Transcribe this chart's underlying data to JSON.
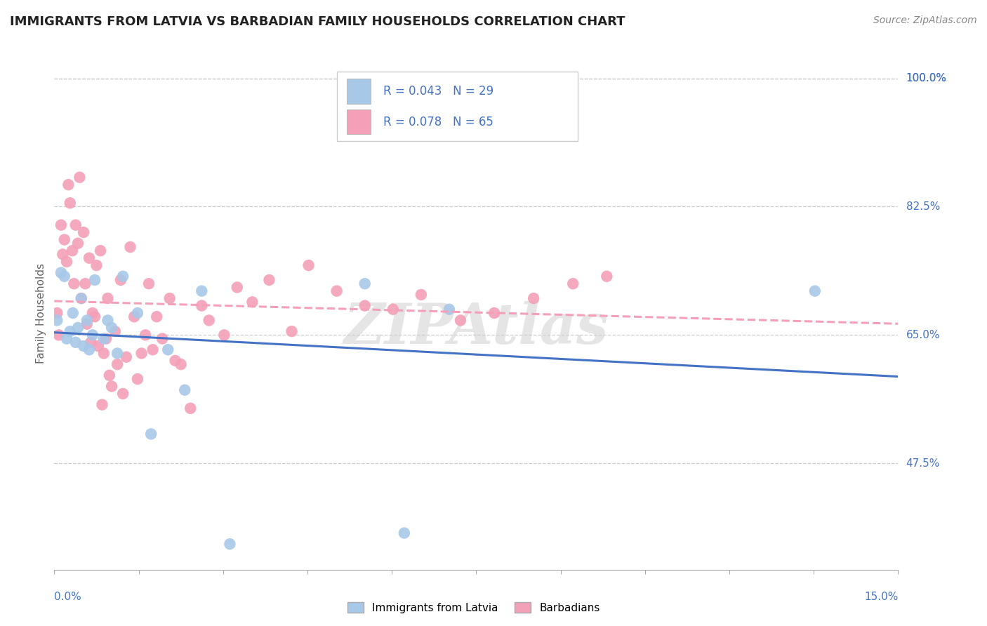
{
  "title": "IMMIGRANTS FROM LATVIA VS BARBADIAN FAMILY HOUSEHOLDS CORRELATION CHART",
  "source": "Source: ZipAtlas.com",
  "ylabel": "Family Households",
  "xmin": 0.0,
  "xmax": 15.0,
  "ymin": 33.0,
  "ymax": 103.0,
  "yticks": [
    47.5,
    65.0,
    82.5,
    100.0
  ],
  "ytick_labels": [
    "47.5%",
    "65.0%",
    "82.5%",
    "100.0%"
  ],
  "color_blue": "#A8C8E8",
  "color_pink": "#F4A0B8",
  "color_blue_text": "#4472C4",
  "trend_blue": "#4472C4",
  "trend_pink": "#F4A0B8",
  "latvia_x": [
    0.05,
    0.12,
    0.18,
    0.22,
    0.28,
    0.33,
    0.38,
    0.42,
    0.48,
    0.52,
    0.58,
    0.62,
    0.68,
    0.72,
    0.88,
    0.95,
    1.02,
    1.12,
    1.22,
    1.48,
    1.72,
    2.02,
    2.32,
    2.62,
    3.12,
    5.52,
    6.22,
    7.02,
    13.52
  ],
  "latvia_y": [
    67.0,
    73.5,
    73.0,
    64.5,
    65.5,
    68.0,
    64.0,
    66.0,
    70.0,
    63.5,
    67.0,
    63.0,
    65.0,
    72.5,
    64.5,
    67.0,
    66.0,
    62.5,
    73.0,
    68.0,
    51.5,
    63.0,
    57.5,
    71.0,
    36.5,
    72.0,
    38.0,
    68.5,
    71.0
  ],
  "barbadian_x": [
    0.05,
    0.08,
    0.12,
    0.15,
    0.18,
    0.22,
    0.25,
    0.28,
    0.32,
    0.35,
    0.38,
    0.42,
    0.45,
    0.48,
    0.52,
    0.55,
    0.58,
    0.62,
    0.65,
    0.68,
    0.72,
    0.75,
    0.78,
    0.82,
    0.85,
    0.88,
    0.92,
    0.95,
    0.98,
    1.02,
    1.08,
    1.12,
    1.18,
    1.22,
    1.28,
    1.35,
    1.42,
    1.48,
    1.55,
    1.62,
    1.68,
    1.75,
    1.82,
    1.92,
    2.05,
    2.15,
    2.25,
    2.42,
    2.62,
    2.75,
    3.02,
    3.25,
    3.52,
    3.82,
    4.22,
    4.52,
    5.02,
    5.52,
    6.02,
    6.52,
    7.22,
    7.82,
    8.52,
    9.22,
    9.82
  ],
  "barbadian_y": [
    68.0,
    65.0,
    80.0,
    76.0,
    78.0,
    75.0,
    85.5,
    83.0,
    76.5,
    72.0,
    80.0,
    77.5,
    86.5,
    70.0,
    79.0,
    72.0,
    66.5,
    75.5,
    64.0,
    68.0,
    67.5,
    74.5,
    63.5,
    76.5,
    55.5,
    62.5,
    64.5,
    70.0,
    59.5,
    58.0,
    65.5,
    61.0,
    72.5,
    57.0,
    62.0,
    77.0,
    67.5,
    59.0,
    62.5,
    65.0,
    72.0,
    63.0,
    67.5,
    64.5,
    70.0,
    61.5,
    61.0,
    55.0,
    69.0,
    67.0,
    65.0,
    71.5,
    69.5,
    72.5,
    65.5,
    74.5,
    71.0,
    69.0,
    68.5,
    70.5,
    67.0,
    68.0,
    70.0,
    72.0,
    73.0
  ]
}
